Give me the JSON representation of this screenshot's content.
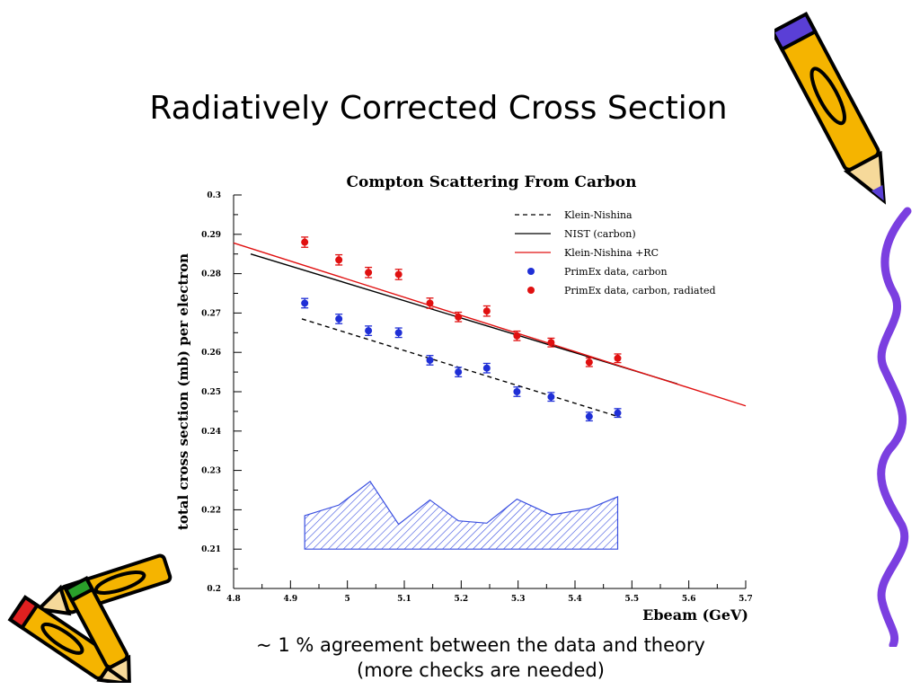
{
  "slide": {
    "title": "Radiatively Corrected Cross Section",
    "caption_line1": "~ 1 % agreement between the data and theory",
    "caption_line2": "(more checks are needed)"
  },
  "decorations": {
    "top_right": "pencil-icon",
    "bottom_left": "pencil-icon",
    "right_edge": "wavy-line",
    "pencil_color": "#f5b400",
    "pencil_outline": "#000000",
    "pencil_band": "#5a3fd6",
    "pencil_eraser": "#e02020",
    "squiggle_color": "#7b3fe0"
  },
  "chart_data": {
    "type": "line",
    "title": "Compton Scattering From Carbon",
    "xlabel": "Ebeam (GeV)",
    "ylabel": "total cross section (mb) per electron",
    "xlim": [
      4.8,
      5.7
    ],
    "ylim": [
      0.2,
      0.3
    ],
    "xticks": [
      "4.8",
      "4.9",
      "5",
      "5.1",
      "5.2",
      "5.3",
      "5.4",
      "5.5",
      "5.6",
      "5.7"
    ],
    "yticks": [
      "0.2",
      "0.21",
      "0.22",
      "0.23",
      "0.24",
      "0.25",
      "0.26",
      "0.27",
      "0.28",
      "0.29",
      "0.3"
    ],
    "legend_position": "top-right",
    "colors": {
      "blue": "#1f2fd6",
      "red": "#e01010",
      "black": "#000000",
      "hatch": "#3a4fe0"
    },
    "lines": [
      {
        "name": "Klein-Nishina",
        "style": "dashed",
        "color": "#000000",
        "x": [
          4.92,
          5.48
        ],
        "y": [
          0.2685,
          0.2435
        ]
      },
      {
        "name": "NIST (carbon)",
        "style": "solid",
        "color": "#000000",
        "x": [
          4.83,
          5.58
        ],
        "y": [
          0.285,
          0.252
        ]
      },
      {
        "name": "Klein-Nishina +RC",
        "style": "solid",
        "color": "#e01010",
        "x": [
          4.8,
          5.7
        ],
        "y": [
          0.2878,
          0.2464
        ]
      }
    ],
    "series": [
      {
        "name": "PrimEx data, carbon",
        "color": "#1f2fd6",
        "x": [
          4.925,
          4.985,
          5.037,
          5.09,
          5.145,
          5.195,
          5.245,
          5.298,
          5.358,
          5.425,
          5.475
        ],
        "y": [
          0.2725,
          0.2685,
          0.2655,
          0.265,
          0.258,
          0.255,
          0.256,
          0.25,
          0.2487,
          0.2437,
          0.2446
        ],
        "err": [
          0.0012,
          0.0012,
          0.0012,
          0.0012,
          0.0012,
          0.0012,
          0.0012,
          0.0012,
          0.0011,
          0.0011,
          0.0011
        ]
      },
      {
        "name": "PrimEx data, carbon, radiated",
        "color": "#e01010",
        "x": [
          4.925,
          4.985,
          5.037,
          5.09,
          5.145,
          5.195,
          5.245,
          5.298,
          5.358,
          5.425,
          5.475
        ],
        "y": [
          0.288,
          0.2835,
          0.2803,
          0.2798,
          0.2725,
          0.269,
          0.2705,
          0.2642,
          0.2625,
          0.2575,
          0.2585
        ],
        "err": [
          0.0013,
          0.0013,
          0.0013,
          0.0013,
          0.0013,
          0.0012,
          0.0013,
          0.0012,
          0.0011,
          0.0011,
          0.0011
        ]
      }
    ],
    "systematic_band": {
      "x": [
        4.925,
        4.985,
        5.04,
        5.09,
        5.145,
        5.195,
        5.245,
        5.298,
        5.358,
        5.425,
        5.475
      ],
      "y": [
        0.2185,
        0.2212,
        0.2272,
        0.2163,
        0.2225,
        0.2172,
        0.2166,
        0.2227,
        0.2187,
        0.2203,
        0.2233
      ],
      "base": 0.21
    }
  }
}
